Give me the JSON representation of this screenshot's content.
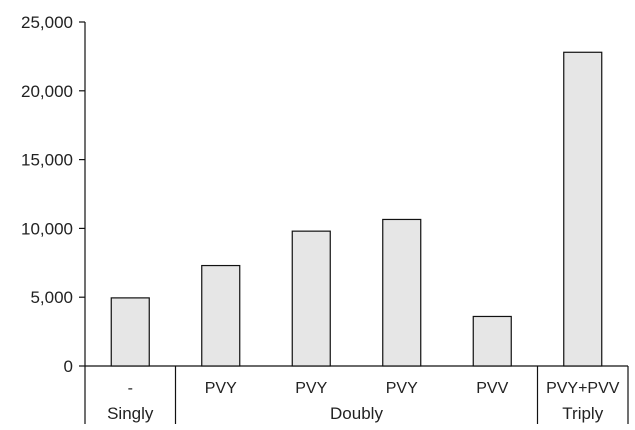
{
  "chart_data": {
    "type": "bar",
    "title": "",
    "xlabel": "",
    "ylabel": "",
    "ylim": [
      0,
      25000
    ],
    "yticks": [
      0,
      5000,
      10000,
      15000,
      20000,
      25000
    ],
    "ytick_labels": [
      "0",
      "5,000",
      "10,000",
      "15,000",
      "20,000",
      "25,000"
    ],
    "categories": [
      "-",
      "PVY",
      "PVY",
      "PVY",
      "PVV",
      "PVY+PVV"
    ],
    "values": [
      4950,
      7300,
      9800,
      10650,
      3600,
      22800
    ],
    "groups": [
      {
        "label": "Singly",
        "start": 0,
        "end": 0
      },
      {
        "label": "Doubly",
        "start": 1,
        "end": 4
      },
      {
        "label": "Triply",
        "start": 5,
        "end": 5
      }
    ],
    "bar_fill": "#e6e6e6",
    "bar_stroke": "#111111",
    "grid": false,
    "legend": "none"
  }
}
